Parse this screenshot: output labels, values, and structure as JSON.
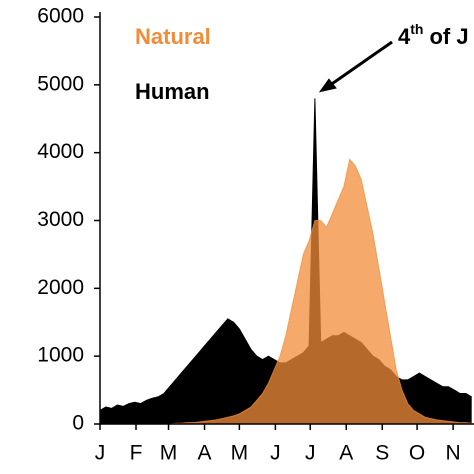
{
  "chart_data": {
    "type": "area",
    "x": [
      0,
      5,
      10,
      15,
      20,
      25,
      30,
      35,
      40,
      45,
      50,
      55,
      60,
      65,
      70,
      75,
      80,
      85,
      90,
      95,
      100,
      105,
      110,
      115,
      120,
      125,
      130,
      135,
      140,
      145,
      150,
      155,
      160,
      165,
      170,
      175,
      180,
      185,
      190,
      195,
      200,
      205,
      210,
      215,
      220,
      225,
      230,
      235,
      240,
      245,
      250,
      255,
      260,
      265,
      270,
      275,
      280,
      285,
      290,
      295,
      300,
      305,
      310,
      315,
      320
    ],
    "series": [
      {
        "name": "Human",
        "color": "#000000",
        "values": [
          200,
          250,
          230,
          280,
          260,
          300,
          320,
          300,
          350,
          380,
          400,
          450,
          550,
          650,
          750,
          850,
          950,
          1050,
          1150,
          1250,
          1350,
          1450,
          1550,
          1500,
          1400,
          1250,
          1100,
          1000,
          950,
          1000,
          950,
          900,
          900,
          950,
          1000,
          1050,
          1150,
          4800,
          1200,
          1250,
          1300,
          1300,
          1350,
          1300,
          1250,
          1200,
          1100,
          1000,
          950,
          850,
          800,
          700,
          650,
          650,
          700,
          750,
          700,
          650,
          600,
          550,
          550,
          500,
          450,
          450,
          400
        ]
      },
      {
        "name": "Natural",
        "color": "#f28c3a",
        "values": [
          0,
          0,
          0,
          0,
          0,
          0,
          0,
          0,
          0,
          0,
          0,
          0,
          0,
          10,
          10,
          20,
          20,
          30,
          40,
          50,
          60,
          80,
          100,
          120,
          150,
          200,
          250,
          350,
          450,
          600,
          800,
          1000,
          1300,
          1700,
          2100,
          2500,
          2700,
          3000,
          3000,
          2900,
          3100,
          3300,
          3500,
          3900,
          3800,
          3600,
          3200,
          2800,
          2300,
          1800,
          1300,
          800,
          500,
          300,
          200,
          150,
          100,
          80,
          60,
          50,
          40,
          30,
          20,
          20,
          10
        ]
      }
    ],
    "xlim": [
      0,
      322
    ],
    "xticks": [
      {
        "value": 0,
        "label": "J"
      },
      {
        "value": 31,
        "label": "F"
      },
      {
        "value": 59,
        "label": "M"
      },
      {
        "value": 90,
        "label": "A"
      },
      {
        "value": 120,
        "label": "M"
      },
      {
        "value": 151,
        "label": "J"
      },
      {
        "value": 181,
        "label": "J"
      },
      {
        "value": 212,
        "label": "A"
      },
      {
        "value": 243,
        "label": "S"
      },
      {
        "value": 273,
        "label": "O"
      },
      {
        "value": 304,
        "label": "N"
      }
    ],
    "ylim": [
      0,
      6000
    ],
    "yticks": [
      0,
      1000,
      2000,
      3000,
      4000,
      5000,
      6000
    ],
    "annotation": {
      "number": "4",
      "sup": "th",
      "text": "of J",
      "x": 185,
      "y": 4800
    }
  }
}
